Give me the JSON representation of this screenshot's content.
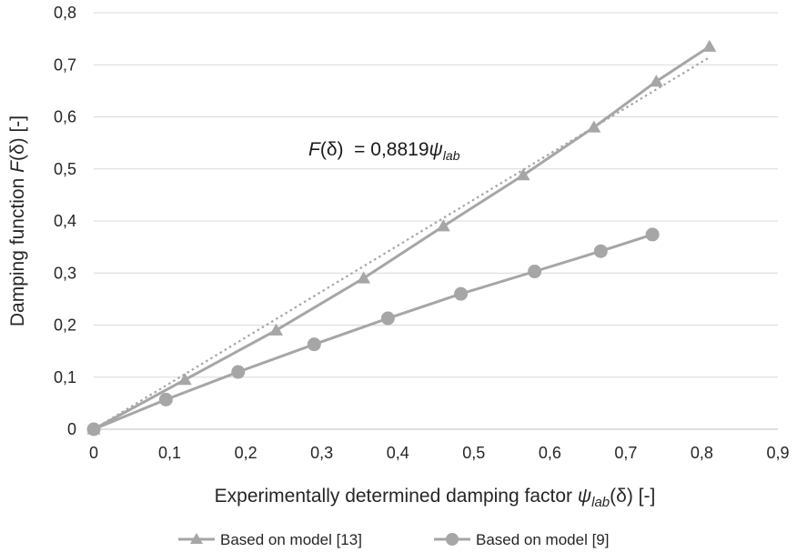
{
  "chart_data": {
    "type": "line",
    "title": "",
    "xlabel": {
      "prefix": "Experimentally determined damping factor ",
      "psi": "ψ",
      "sub": "lab",
      "arg": "(δ)",
      "unit": " [-]"
    },
    "ylabel": {
      "prefix": "Damping function ",
      "F": "F",
      "arg": "(δ)",
      "unit": " [-]"
    },
    "xlim": [
      0,
      0.9
    ],
    "ylim": [
      0,
      0.8
    ],
    "x_ticks": [
      0,
      0.1,
      0.2,
      0.3,
      0.4,
      0.5,
      0.6,
      0.7,
      0.8,
      0.9
    ],
    "y_ticks": [
      0,
      0.1,
      0.2,
      0.3,
      0.4,
      0.5,
      0.6,
      0.7,
      0.8
    ],
    "x_tick_labels": [
      "0",
      "0,1",
      "0,2",
      "0,3",
      "0,4",
      "0,5",
      "0,6",
      "0,7",
      "0,8",
      "0,9"
    ],
    "y_tick_labels": [
      "0",
      "0,1",
      "0,2",
      "0,3",
      "0,4",
      "0,5",
      "0,6",
      "0,7",
      "0,8"
    ],
    "grid": "horizontal",
    "legend_position": "bottom",
    "series": [
      {
        "name": "Based on model [13]",
        "marker": "triangle",
        "color": "#a6a6a6",
        "points": [
          [
            0,
            0
          ],
          [
            0.12,
            0.095
          ],
          [
            0.24,
            0.19
          ],
          [
            0.355,
            0.29
          ],
          [
            0.46,
            0.39
          ],
          [
            0.565,
            0.488
          ],
          [
            0.658,
            0.58
          ],
          [
            0.74,
            0.668
          ],
          [
            0.81,
            0.735
          ]
        ]
      },
      {
        "name": "Based on model [9]",
        "marker": "circle",
        "color": "#a6a6a6",
        "points": [
          [
            0,
            0
          ],
          [
            0.095,
            0.057
          ],
          [
            0.19,
            0.11
          ],
          [
            0.29,
            0.163
          ],
          [
            0.387,
            0.213
          ],
          [
            0.483,
            0.26
          ],
          [
            0.58,
            0.303
          ],
          [
            0.667,
            0.342
          ],
          [
            0.735,
            0.374
          ]
        ]
      }
    ],
    "trendline": {
      "style": "dotted",
      "color": "#a6a6a6",
      "slope": 0.8819,
      "x_range": [
        0,
        0.81
      ]
    },
    "annotation": {
      "F": "F",
      "arg": "(δ)",
      "equals": "  = 0,8819",
      "psi": "ψ",
      "sub": "lab"
    }
  }
}
